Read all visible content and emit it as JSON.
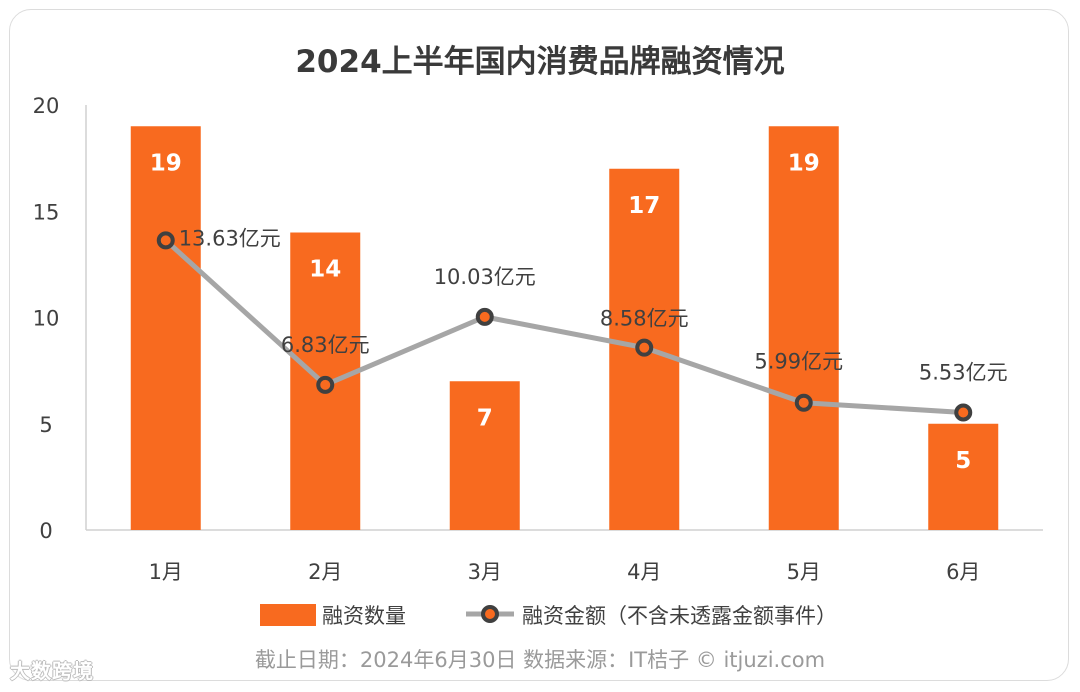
{
  "chart_data": {
    "type": "bar",
    "title": "2024上半年国内消费品牌融资情况",
    "categories": [
      "1月",
      "2月",
      "3月",
      "4月",
      "5月",
      "6月"
    ],
    "series": [
      {
        "name": "融资数量",
        "type": "bar",
        "values": [
          19,
          14,
          7,
          17,
          19,
          5
        ],
        "labels": [
          "19",
          "14",
          "7",
          "17",
          "19",
          "5"
        ],
        "color": "#F86A1F"
      },
      {
        "name": "融资金额（不含未透露金额事件）",
        "type": "line",
        "values": [
          13.63,
          6.83,
          10.03,
          8.58,
          5.99,
          5.53
        ],
        "labels": [
          "13.63亿元",
          "6.83亿元",
          "10.03亿元",
          "8.58亿元",
          "5.99亿元",
          "5.53亿元"
        ],
        "color": "#A6A6A6",
        "marker_color": "#404040"
      }
    ],
    "ylim": [
      0,
      20
    ],
    "yticks": [
      "0",
      "5",
      "10",
      "15",
      "20"
    ],
    "ytick_values": [
      0,
      5,
      10,
      15,
      20
    ],
    "grid": false,
    "legend": "bottom"
  },
  "footer": {
    "source": "截止日期：2024年6月30日    数据来源：IT桔子 © itjuzi.com",
    "watermark": "大数跨境"
  }
}
